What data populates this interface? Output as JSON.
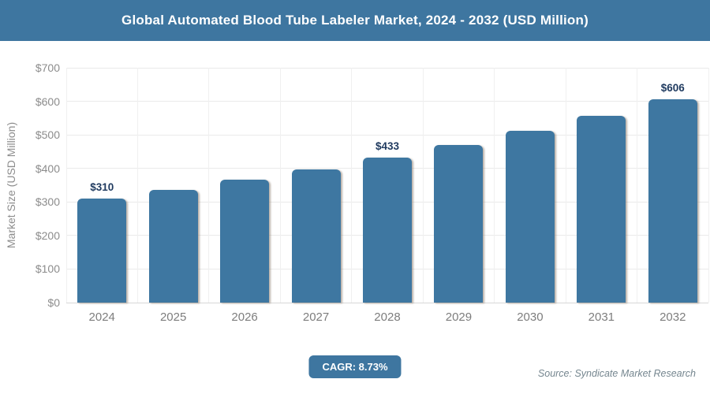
{
  "header": {
    "title": "Global Automated Blood Tube Labeler Market, 2024 - 2032 (USD Million)",
    "bg_color": "#3e76a0",
    "text_color": "#ffffff"
  },
  "chart_data": {
    "type": "bar",
    "title": "Global Automated Blood Tube Labeler Market, 2024 - 2032 (USD Million)",
    "xlabel": "",
    "ylabel": "Market Size (USD Million)",
    "ylim": [
      0,
      700
    ],
    "ytick_step": 100,
    "yticks": [
      [
        0,
        "$0"
      ],
      [
        100,
        "$100"
      ],
      [
        200,
        "$200"
      ],
      [
        300,
        "$300"
      ],
      [
        400,
        "$400"
      ],
      [
        500,
        "$500"
      ],
      [
        600,
        "$600"
      ],
      [
        700,
        "$700"
      ]
    ],
    "grid": true,
    "legend": "none",
    "bar_color": "#3e77a1",
    "label_color": "#1f3a5f",
    "categories": [
      "2024",
      "2025",
      "2026",
      "2027",
      "2028",
      "2029",
      "2030",
      "2031",
      "2032"
    ],
    "values": [
      310,
      337,
      366,
      398,
      433,
      471,
      512,
      557,
      606
    ],
    "point_labels": [
      "$310",
      "",
      "",
      "",
      "$433",
      "",
      "",
      "",
      "$606"
    ]
  },
  "footer": {
    "cagr_label": "CAGR: 8.73%",
    "cagr_bg_color": "#3e76a0",
    "source": "Source: Syndicate Market Research"
  }
}
